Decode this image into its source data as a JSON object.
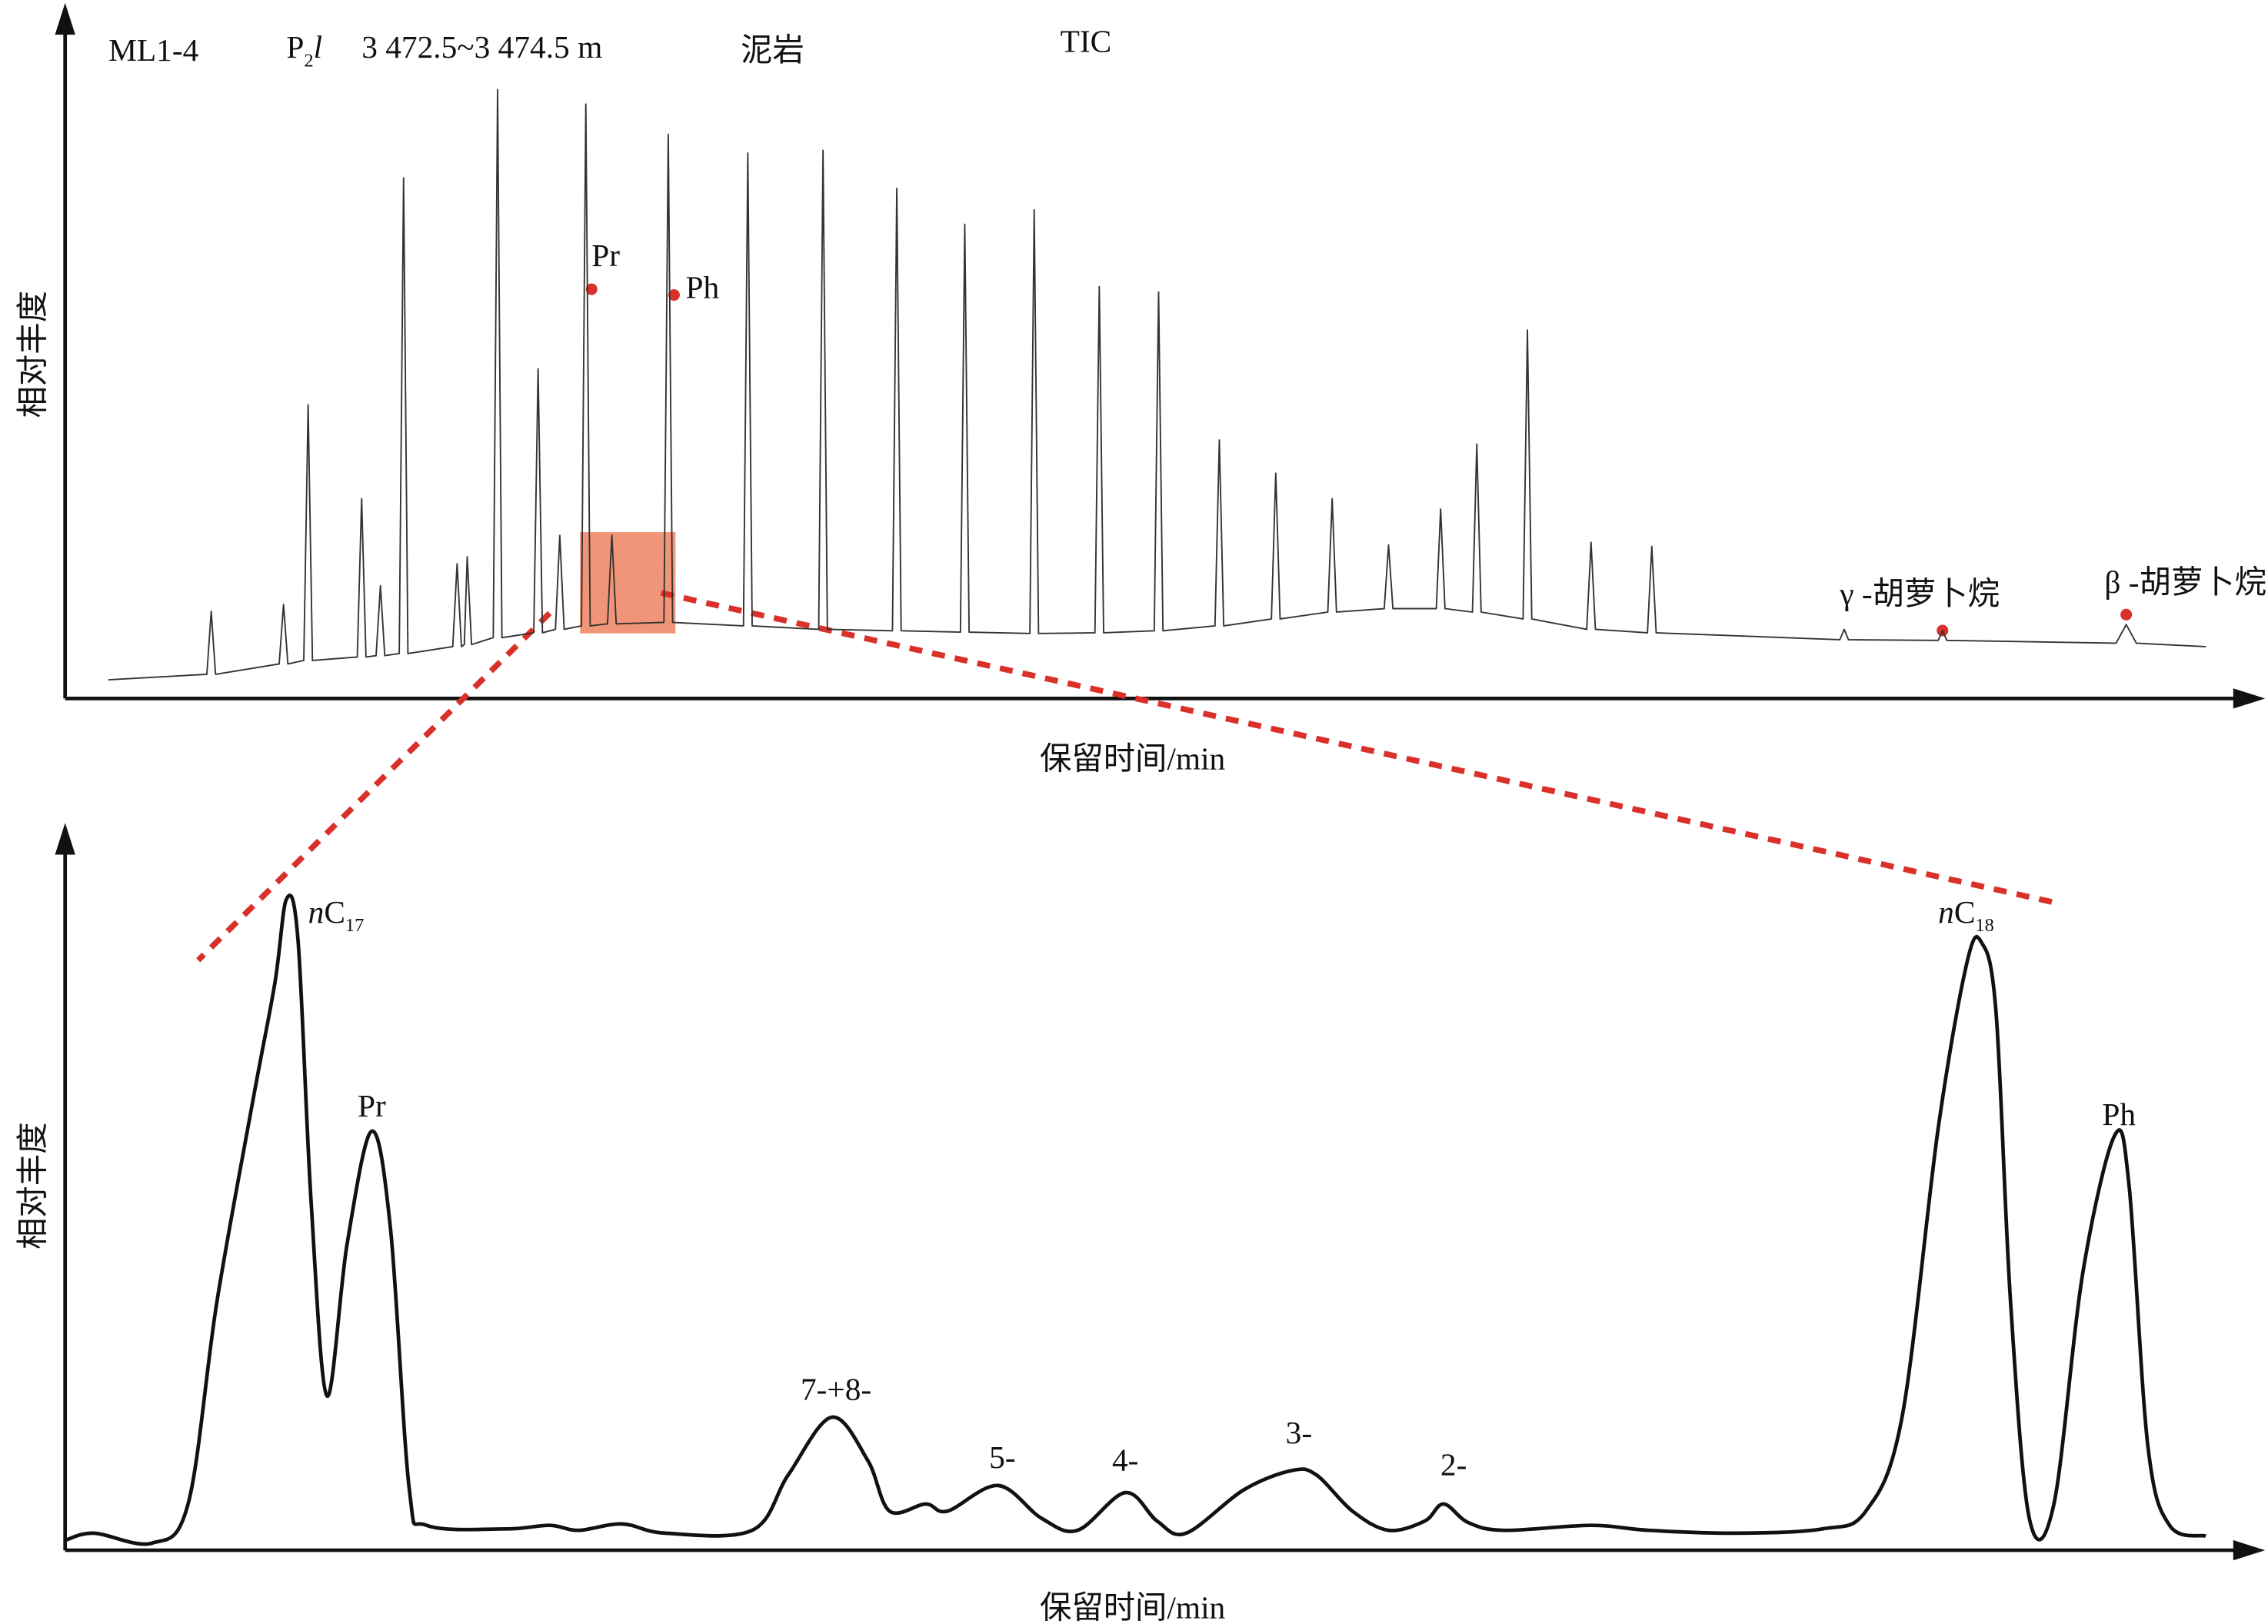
{
  "chart_data": [
    {
      "type": "line",
      "sample": "ML1-4",
      "formation": {
        "main": "P",
        "sub": "2",
        "italic": "l"
      },
      "depth": "3 472.5~3 474.5 m",
      "lithology": "泥岩",
      "title": "TIC",
      "x_label": "保留时间/min",
      "y_label": "相对丰度",
      "color": "#333333",
      "xlim": [
        0,
        1495
      ],
      "ylim": [
        0,
        100
      ],
      "x": [
        30,
        98,
        101,
        104,
        148,
        151,
        154,
        165,
        168,
        171,
        202,
        205,
        208,
        215,
        218,
        221,
        231,
        234,
        237,
        268,
        271,
        274,
        276,
        278,
        281,
        296,
        299,
        302,
        324,
        327,
        330,
        339,
        342,
        345,
        357,
        360,
        363,
        375,
        378,
        381,
        414,
        417,
        420,
        469,
        472,
        475,
        521,
        524,
        527,
        572,
        575,
        578,
        619,
        622,
        625,
        667,
        670,
        673,
        712,
        715,
        718,
        753,
        756,
        759,
        795,
        798,
        801,
        834,
        837,
        840,
        873,
        876,
        879,
        912,
        915,
        918,
        948,
        951,
        954,
        973,
        976,
        979,
        1008,
        1011,
        1014,
        1052,
        1055,
        1058,
        1094,
        1097,
        1100,
        1227,
        1230,
        1233,
        1295,
        1298,
        1301,
        1418,
        1425,
        1432,
        1480
      ],
      "values": [
        2.7,
        3.5,
        12.6,
        3.5,
        5,
        13.6,
        5,
        5.5,
        42.5,
        5.5,
        6,
        28.9,
        6,
        6.2,
        16.3,
        6.2,
        6.5,
        75.3,
        6.5,
        7.5,
        19.5,
        7.5,
        7.8,
        20.5,
        7.8,
        8.8,
        88.1,
        8.8,
        9.5,
        47.7,
        9.5,
        10,
        23.6,
        10,
        10.5,
        86.0,
        10.5,
        10.8,
        23.6,
        10.8,
        11,
        81.6,
        11,
        10.5,
        78.9,
        10.5,
        10,
        79.3,
        10,
        9.8,
        73.8,
        9.8,
        9.6,
        68.6,
        9.6,
        9.4,
        70.7,
        9.4,
        9.5,
        59.6,
        9.5,
        9.8,
        58.8,
        9.8,
        10.5,
        37.4,
        10.5,
        11.5,
        32.6,
        11.5,
        12.5,
        28.9,
        12.5,
        13,
        22.2,
        13,
        13,
        27.4,
        13,
        12.5,
        36.8,
        12.5,
        11.5,
        53.3,
        11.5,
        10,
        22.6,
        10,
        9.5,
        22.0,
        9.5,
        8.5,
        10.0,
        8.5,
        8.4,
        9.8,
        8.4,
        8,
        10.7,
        8,
        7.5
      ],
      "annotations": [
        {
          "text": "Pr"
        },
        {
          "text": "Ph"
        },
        {
          "text": "γ -胡萝卜烷"
        },
        {
          "text": "β -胡萝卜烷"
        }
      ]
    },
    {
      "type": "line",
      "x_label": "保留时间/min",
      "y_label": "相对丰度",
      "color": "#111111",
      "xlim": [
        0,
        1495
      ],
      "ylim": [
        0,
        100
      ],
      "x": [
        0,
        20,
        60,
        85,
        105,
        130,
        145,
        153,
        161,
        170,
        181,
        195,
        212,
        225,
        238,
        250,
        305,
        335,
        355,
        385,
        415,
        475,
        500,
        530,
        555,
        570,
        595,
        610,
        645,
        675,
        700,
        733,
        755,
        775,
        815,
        848,
        865,
        890,
        915,
        940,
        953,
        970,
        995,
        1055,
        1095,
        1155,
        1215,
        1245,
        1270,
        1295,
        1315,
        1325,
        1335,
        1345,
        1358,
        1375,
        1395,
        1417,
        1427,
        1440,
        1455,
        1480
      ],
      "values": [
        1.4,
        2.4,
        1.0,
        6.5,
        35.0,
        63.4,
        79.7,
        91.5,
        85.8,
        49.2,
        21.7,
        43.1,
        58.9,
        45.1,
        8.5,
        3.5,
        3.0,
        3.5,
        2.8,
        3.7,
        2.4,
        2.8,
        10.6,
        18.7,
        12.6,
        5.5,
        6.5,
        5.5,
        9.1,
        4.5,
        2.8,
        8.1,
        4.1,
        2.4,
        8.5,
        11.2,
        10.6,
        5.5,
        2.8,
        4.1,
        6.5,
        3.9,
        2.8,
        3.5,
        2.8,
        2.4,
        3.0,
        5.5,
        18.7,
        59.3,
        82.7,
        85.4,
        75.6,
        35.0,
        4.5,
        6.5,
        39.0,
        58.3,
        51.2,
        14.6,
        3.5,
        2.0
      ],
      "annotations": [
        {
          "prefix": "n",
          "text": "C",
          "sub": "17"
        },
        {
          "text": "Pr"
        },
        {
          "text": "7-+8-"
        },
        {
          "text": "5-"
        },
        {
          "text": "4-"
        },
        {
          "text": "3-"
        },
        {
          "text": "2-"
        },
        {
          "prefix": "n",
          "text": "C",
          "sub": "18"
        },
        {
          "text": "Ph"
        }
      ]
    }
  ]
}
